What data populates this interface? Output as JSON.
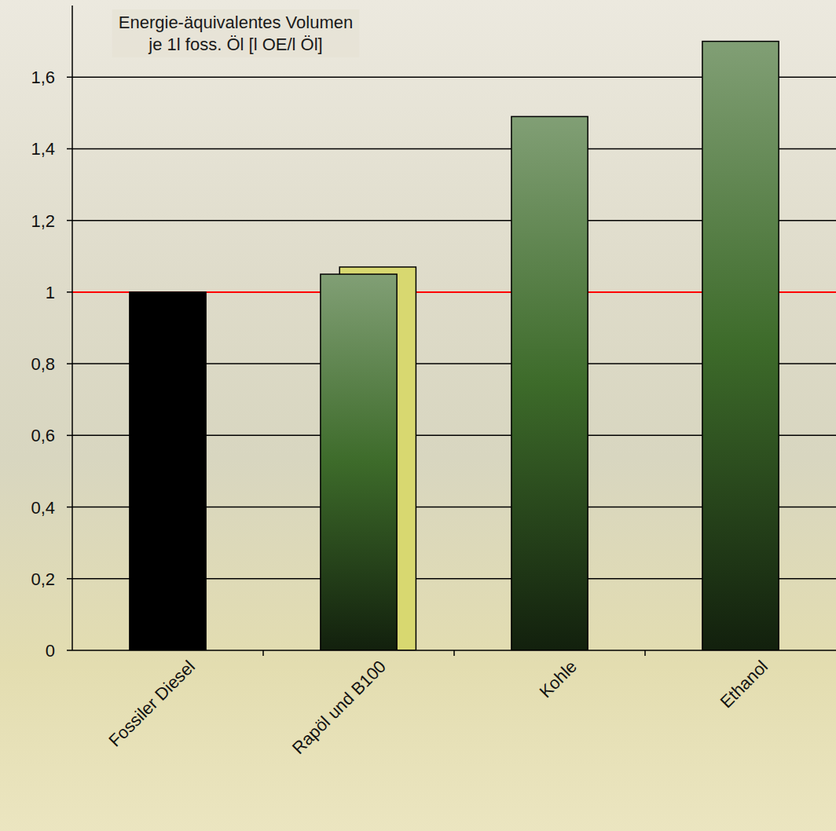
{
  "chart_data": {
    "type": "bar",
    "annotations": [
      "Energie-äquivalentes Volumen",
      "je 1l foss. Öl [l OE/l Öl]"
    ],
    "categories": [
      "Fossiler Diesel",
      "Rapöl und B100",
      "Kohle",
      "Ethanol"
    ],
    "series": [
      {
        "color": "#3d6b2a",
        "colors": [
          "#000000",
          "#3d6b2a",
          "#3d6b2a",
          "#3d6b2a"
        ],
        "values": [
          1.0,
          1.05,
          1.49,
          1.7
        ]
      },
      {
        "color": "#d8d870",
        "values": [
          null,
          1.07,
          null,
          null
        ]
      }
    ],
    "ylim": [
      0,
      1.8
    ],
    "yticks": [
      0,
      {
        "value": 0.2,
        "label": "0,2"
      },
      {
        "value": 0.4,
        "label": "0,4"
      },
      {
        "value": 0.6,
        "label": "0,6"
      },
      {
        "value": 0.8,
        "label": "0,8"
      },
      1,
      {
        "value": 1.2,
        "label": "1,2"
      },
      {
        "value": 1.4,
        "label": "1,4"
      },
      {
        "value": 1.6,
        "label": "1,6"
      }
    ],
    "reference_line": 1,
    "grid": true
  }
}
